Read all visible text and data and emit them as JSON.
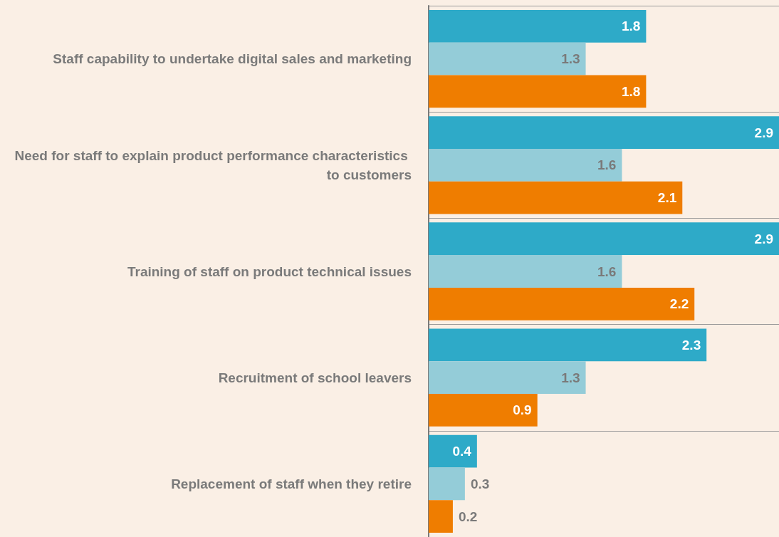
{
  "chart_data": {
    "type": "bar",
    "orientation": "horizontal",
    "categories": [
      "Staff capability to undertake digital sales and marketing",
      "Need for staff to explain product performance characteristics to customers",
      "Training of staff on product technical issues",
      "Recruitment of school leavers",
      "Replacement of staff when they retire"
    ],
    "series": [
      {
        "color": "#2eaac8",
        "values": [
          1.8,
          2.9,
          2.9,
          2.3,
          0.4
        ]
      },
      {
        "color": "#94ccd8",
        "values": [
          1.3,
          1.6,
          1.6,
          1.3,
          0.3
        ]
      },
      {
        "color": "#ef7d00",
        "values": [
          1.8,
          2.1,
          2.2,
          0.9,
          0.2
        ]
      }
    ],
    "data_labels": true,
    "grid": "y"
  }
}
